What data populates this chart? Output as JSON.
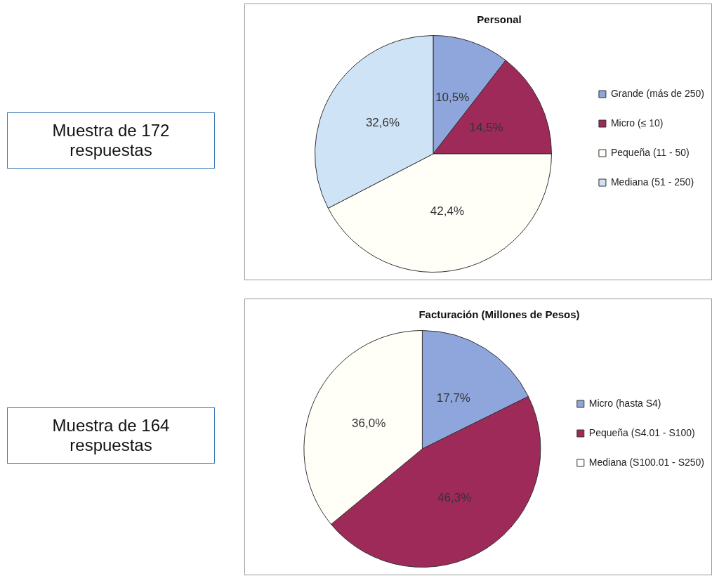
{
  "chart_data": [
    {
      "type": "pie",
      "title": "Personal",
      "categories": [
        "Grande (más de 250)",
        "Micro (≤ 10)",
        "Pequeña (11 - 50)",
        "Mediana (51 - 250)"
      ],
      "values": [
        10.5,
        14.5,
        42.4,
        32.6
      ],
      "colors": [
        "#8fa6dc",
        "#9e2a5a",
        "#fffff8",
        "#cfe3f6"
      ],
      "value_labels": [
        "10,5%",
        "14,5%",
        "42,4%",
        "32,6%"
      ],
      "legend": "right",
      "annotations": [
        "Muestra de 172 respuestas"
      ]
    },
    {
      "type": "pie",
      "title": "Facturación (Millones de Pesos)",
      "categories": [
        "Micro (hasta S4)",
        "Pequeña (S4.01 - S100)",
        "Mediana (S100.01 - S250)"
      ],
      "values": [
        17.7,
        46.3,
        36.0
      ],
      "colors": [
        "#8fa6dc",
        "#9e2a5a",
        "#fffff8"
      ],
      "value_labels": [
        "17,7%",
        "46,3%",
        "36,0%"
      ],
      "legend": "right",
      "annotations": [
        "Muestra de 164 respuestas"
      ]
    }
  ]
}
